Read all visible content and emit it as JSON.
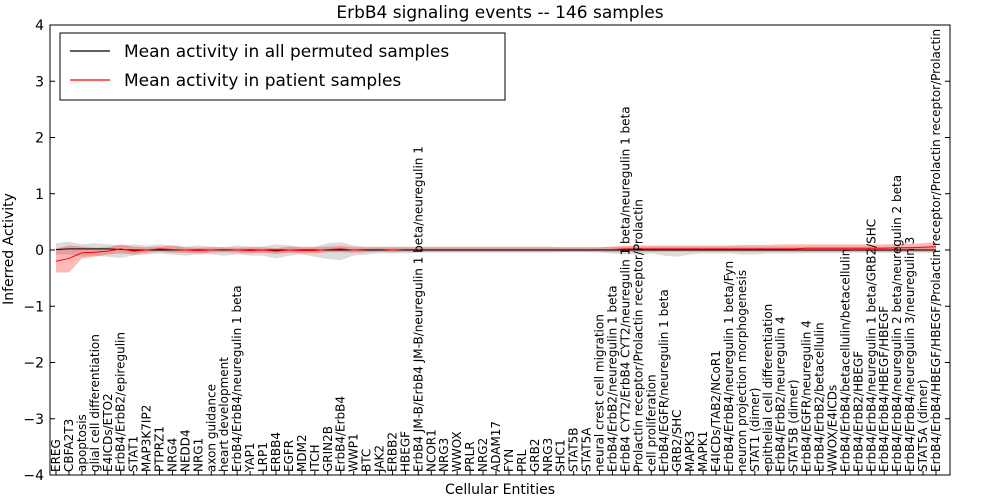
{
  "chart_data": {
    "type": "line",
    "title": "ErbB4 signaling events -- 146 samples",
    "xlabel": "Cellular Entities",
    "ylabel": "Inferred Activity",
    "ylim": [
      -4,
      4
    ],
    "yticks": [
      -4,
      -3,
      -2,
      -1,
      0,
      1,
      2,
      3,
      4
    ],
    "ytick_labels": [
      "−4",
      "−3",
      "−2",
      "−1",
      "0",
      "1",
      "2",
      "3",
      "4"
    ],
    "legend_position": "top-left",
    "legend": [
      {
        "name": "Mean activity in all permuted samples",
        "color": "#000000"
      },
      {
        "name": "Mean activity in patient samples",
        "color": "#ff0000"
      }
    ],
    "categories": [
      "EREG",
      "CBFA2T3",
      "apoptosis",
      "glial cell differentiation",
      "E4ICDs/ETO2",
      "ErbB4/ErbB2/epiregulin",
      "STAT1",
      "MAP3K7IP2",
      "PTPRZ1",
      "NRG4",
      "NEDD4",
      "NRG1",
      "axon guidance",
      "heart development",
      "ErbB4/ErbB4/neuregulin 1 beta",
      "YAP1",
      "LRP1",
      "ERBB4",
      "EGFR",
      "MDM2",
      "ITCH",
      "GRIN2B",
      "ErbB4/ErbB4",
      "WWP1",
      "BTC",
      "JAK2",
      "ERBB2",
      "HBEGF",
      "ErbB4 JM-B/ErbB4 JM-B/neuregulin 1 beta/neuregulin 1",
      "NCOR1",
      "NRG3",
      "WWOX",
      "PRLR",
      "NRG2",
      "ADAM17",
      "FYN",
      "PRL",
      "GRB2",
      "NRG3",
      "SHC1",
      "STAT5B",
      "STAT5A",
      "neural crest cell migration",
      "ErbB4/ErbB2/neuregulin 1 beta",
      "ErbB4 CYT2/ErbB4 CYT2/neuregulin 1 beta/neuregulin 1 beta",
      "Prolactin receptor/Prolactin receptor/Prolactin",
      "cell proliferation",
      "ErbB4/EGFR/neuregulin 1 beta",
      "GRB2/SHC",
      "MAPK3",
      "MAPK1",
      "E4ICDs/TAB2/NCoR1",
      "ErbB4/ErbB4/neuregulin 1 beta/Fyn",
      "neuron projection morphogenesis",
      "STAT1 (dimer)",
      "epithelial cell differentiation",
      "ErbB4/ErbB2/neuregulin 4",
      "STAT5B (dimer)",
      "ErbB4/EGFR/neuregulin 4",
      "ErbB4/ErbB2/betacellulin",
      "WWOX/E4ICDs",
      "ErbB4/ErbB4/betacellulin/betacellulin",
      "ErbB4/ErbB2/HBEGF",
      "ErbB4/ErbB4/neuregulin 1 beta/GRB2/SHC",
      "ErbB4/ErbB4/HBEGF/HBEGF",
      "ErbB4/ErbB4/neuregulin 2 beta/neuregulin 2 beta",
      "ErbB4/ErbB4/neuregulin 3/neuregulin 3",
      "STAT5A (dimer)",
      "ErbB4/ErbB4/HBEGF/HBEGF/Prolactin receptor/Prolactin receptor/Prolactin"
    ],
    "series": [
      {
        "name": "Mean activity in all permuted samples",
        "color": "#000000",
        "values": [
          0.01,
          0.02,
          0.02,
          0.02,
          0.02,
          0.01,
          0.0,
          0.0,
          0.0,
          0.0,
          0.0,
          0.0,
          0.0,
          0.0,
          0.0,
          0.0,
          0.0,
          0.0,
          0.0,
          0.0,
          0.0,
          0.0,
          0.0,
          0.0,
          0.0,
          0.0,
          0.0,
          0.0,
          0.0,
          0.0,
          0.0,
          0.0,
          0.0,
          0.0,
          0.0,
          0.0,
          0.0,
          0.0,
          0.0,
          0.0,
          0.0,
          0.0,
          0.0,
          0.0,
          0.0,
          0.0,
          0.0,
          0.0,
          0.0,
          0.0,
          0.0,
          0.0,
          0.0,
          0.0,
          0.0,
          0.0,
          0.0,
          0.0,
          0.0,
          0.0,
          0.0,
          0.0,
          0.0,
          0.0,
          0.0,
          0.0,
          0.0,
          0.0,
          0.0
        ],
        "band_upper": [
          0.12,
          0.15,
          0.1,
          0.12,
          0.1,
          0.08,
          0.1,
          0.08,
          0.1,
          0.08,
          0.06,
          0.08,
          0.06,
          0.05,
          0.08,
          0.06,
          0.06,
          0.1,
          0.08,
          0.06,
          0.06,
          0.12,
          0.14,
          0.08,
          0.06,
          0.06,
          0.06,
          0.06,
          0.06,
          0.06,
          0.06,
          0.06,
          0.06,
          0.06,
          0.06,
          0.06,
          0.06,
          0.06,
          0.06,
          0.05,
          0.05,
          0.05,
          0.05,
          0.06,
          0.06,
          0.06,
          0.06,
          0.06,
          0.06,
          0.06,
          0.06,
          0.06,
          0.06,
          0.06,
          0.06,
          0.06,
          0.06,
          0.06,
          0.06,
          0.06,
          0.06,
          0.06,
          0.06,
          0.06,
          0.06,
          0.06,
          0.06,
          0.06,
          0.06
        ],
        "band_lower": [
          -0.08,
          -0.08,
          -0.12,
          -0.1,
          -0.12,
          -0.14,
          -0.1,
          -0.08,
          -0.06,
          -0.08,
          -0.1,
          -0.08,
          -0.08,
          -0.1,
          -0.08,
          -0.1,
          -0.1,
          -0.15,
          -0.1,
          -0.08,
          -0.12,
          -0.16,
          -0.18,
          -0.1,
          -0.08,
          -0.06,
          -0.06,
          -0.06,
          -0.05,
          -0.05,
          -0.05,
          -0.05,
          -0.05,
          -0.05,
          -0.05,
          -0.05,
          -0.05,
          -0.05,
          -0.05,
          -0.04,
          -0.04,
          -0.04,
          -0.05,
          -0.06,
          -0.08,
          -0.08,
          -0.06,
          -0.1,
          -0.12,
          -0.08,
          -0.06,
          -0.06,
          -0.06,
          -0.08,
          -0.08,
          -0.06,
          -0.06,
          -0.06,
          -0.06,
          -0.06,
          -0.06,
          -0.05,
          -0.05,
          -0.05,
          -0.05,
          -0.05,
          -0.05,
          -0.05,
          -0.05
        ]
      },
      {
        "name": "Mean activity in patient samples",
        "color": "#ff0000",
        "values": [
          -0.2,
          -0.15,
          -0.05,
          -0.04,
          -0.02,
          0.02,
          -0.02,
          0.0,
          0.02,
          0.01,
          0.0,
          -0.01,
          0.0,
          0.01,
          0.0,
          -0.01,
          0.0,
          -0.02,
          0.0,
          -0.01,
          -0.01,
          0.01,
          0.02,
          0.0,
          0.01,
          0.01,
          0.0,
          0.01,
          0.01,
          0.01,
          0.01,
          0.01,
          0.01,
          0.01,
          0.01,
          0.01,
          0.01,
          0.01,
          0.01,
          0.01,
          0.01,
          0.01,
          0.01,
          0.01,
          0.02,
          0.02,
          0.02,
          0.02,
          0.02,
          0.02,
          0.02,
          0.02,
          0.02,
          0.02,
          0.02,
          0.02,
          0.02,
          0.02,
          0.03,
          0.03,
          0.03,
          0.03,
          0.03,
          0.03,
          0.03,
          0.04,
          0.04,
          0.05,
          0.06
        ],
        "band_upper": [
          0.02,
          0.08,
          0.06,
          0.04,
          0.05,
          0.1,
          0.06,
          0.05,
          0.06,
          0.08,
          0.05,
          0.04,
          0.05,
          0.05,
          0.04,
          0.05,
          0.05,
          0.03,
          0.06,
          0.05,
          0.05,
          0.06,
          0.07,
          0.05,
          0.05,
          0.05,
          0.05,
          0.05,
          0.05,
          0.05,
          0.05,
          0.05,
          0.05,
          0.05,
          0.05,
          0.05,
          0.05,
          0.05,
          0.05,
          0.05,
          0.05,
          0.05,
          0.05,
          0.06,
          0.07,
          0.08,
          0.08,
          0.08,
          0.08,
          0.08,
          0.08,
          0.08,
          0.08,
          0.09,
          0.09,
          0.09,
          0.1,
          0.1,
          0.1,
          0.1,
          0.1,
          0.1,
          0.1,
          0.1,
          0.1,
          0.11,
          0.11,
          0.12,
          0.14
        ],
        "band_lower": [
          -0.4,
          -0.4,
          -0.15,
          -0.12,
          -0.08,
          -0.06,
          -0.08,
          -0.05,
          -0.03,
          -0.05,
          -0.05,
          -0.06,
          -0.05,
          -0.04,
          -0.05,
          -0.06,
          -0.05,
          -0.07,
          -0.05,
          -0.06,
          -0.06,
          -0.04,
          -0.04,
          -0.05,
          -0.04,
          -0.03,
          -0.04,
          -0.03,
          -0.03,
          -0.03,
          -0.03,
          -0.03,
          -0.03,
          -0.03,
          -0.03,
          -0.03,
          -0.03,
          -0.03,
          -0.03,
          -0.03,
          -0.03,
          -0.03,
          -0.03,
          -0.04,
          -0.03,
          -0.03,
          -0.03,
          -0.03,
          -0.03,
          -0.03,
          -0.03,
          -0.03,
          -0.03,
          -0.03,
          -0.03,
          -0.03,
          -0.03,
          -0.03,
          -0.03,
          -0.03,
          -0.03,
          -0.03,
          -0.03,
          -0.03,
          -0.03,
          -0.03,
          -0.03,
          -0.03,
          -0.03
        ]
      }
    ]
  }
}
